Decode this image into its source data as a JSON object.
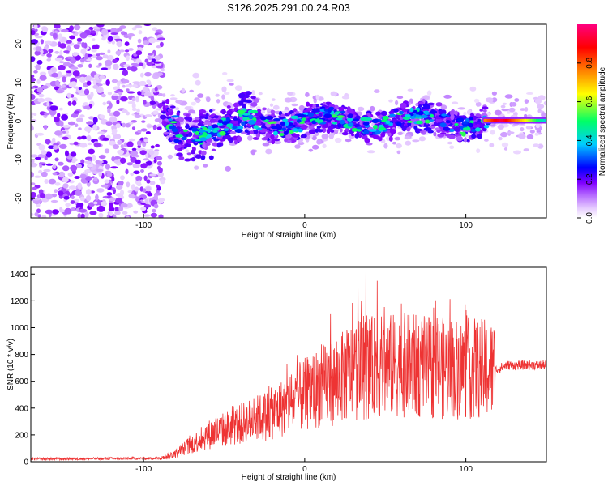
{
  "title": "S126.2025.291.00.24.R03",
  "chart_data": [
    {
      "type": "heatmap",
      "name": "spectrogram",
      "xlabel": "Height of straight line (km)",
      "ylabel": "Frequency (Hz)",
      "xlim": [
        -170,
        150
      ],
      "ylim": [
        -25,
        25
      ],
      "xticks": [
        -100,
        0,
        100
      ],
      "yticks": [
        -20,
        -10,
        0,
        10,
        20
      ],
      "xtick_labels": [
        "-100",
        "0",
        "100"
      ],
      "ytick_labels": [
        "-20",
        "-10",
        "0",
        "10",
        "20"
      ],
      "colorbar": {
        "label": "Normalized spectral amplitude",
        "range": [
          0,
          1
        ],
        "ticks": [
          0.0,
          0.2,
          0.4,
          0.6,
          0.8
        ],
        "tick_labels": [
          "0.0",
          "0.2",
          "0.4",
          "0.6",
          "0.8"
        ],
        "colors": [
          "#ffffff",
          "#e6ccff",
          "#b366ff",
          "#8000ff",
          "#0000ff",
          "#00ccff",
          "#00ff66",
          "#ffff00",
          "#ff8000",
          "#ff0000",
          "#ff0080"
        ]
      },
      "features": {
        "noise_region_x": [
          -170,
          -88
        ],
        "signal_band_center_hz": 0,
        "strong_tone_x": [
          112,
          150
        ],
        "strong_tone_peak_x": 122
      }
    },
    {
      "type": "line",
      "name": "snr",
      "xlabel": "Height of straight line (km)",
      "ylabel": "SNR (10 * v/v)",
      "xlim": [
        -170,
        150
      ],
      "ylim": [
        0,
        1450
      ],
      "xticks": [
        -100,
        0,
        100
      ],
      "yticks": [
        0,
        200,
        400,
        600,
        800,
        1000,
        1200,
        1400
      ],
      "xtick_labels": [
        "-100",
        "0",
        "100"
      ],
      "ytick_labels": [
        "0",
        "200",
        "400",
        "600",
        "800",
        "1000",
        "1200",
        "1400"
      ],
      "color": "#ee3333",
      "envelope": {
        "x": [
          -170,
          -90,
          -80,
          -60,
          -40,
          -20,
          0,
          10,
          20,
          30,
          40,
          60,
          80,
          100,
          110,
          118,
          125,
          150
        ],
        "y": [
          20,
          25,
          60,
          200,
          280,
          360,
          500,
          560,
          600,
          680,
          700,
          720,
          700,
          700,
          690,
          680,
          720,
          720
        ]
      },
      "peaks": [
        {
          "x": 33,
          "y": 1440
        },
        {
          "x": 38,
          "y": 1420
        },
        {
          "x": 45,
          "y": 1350
        },
        {
          "x": 16,
          "y": 1100
        },
        {
          "x": 80,
          "y": 1150
        },
        {
          "x": 60,
          "y": 1180
        }
      ]
    }
  ]
}
